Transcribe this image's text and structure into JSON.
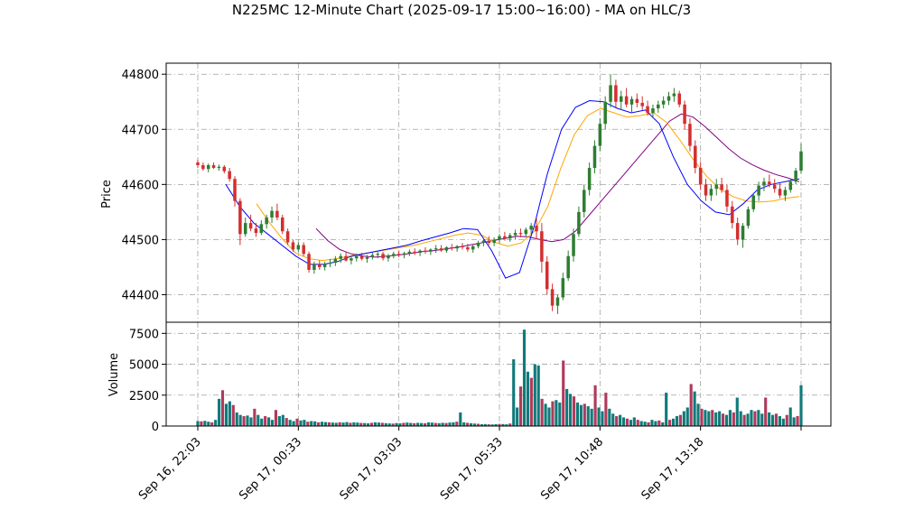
{
  "chart_data": {
    "type": "candlestick",
    "title": "N225MC 12-Minute Chart (2025-09-17 15:00~16:00) - MA on HLC/3",
    "price_panel": {
      "ylabel": "Price",
      "ylim": [
        44350,
        44820
      ],
      "yticks": [
        44400,
        44500,
        44600,
        44700,
        44800
      ],
      "grid": true,
      "candles": [
        [
          44640,
          44645,
          44630,
          44635
        ],
        [
          44635,
          44640,
          44625,
          44628
        ],
        [
          44628,
          44638,
          44622,
          44635
        ],
        [
          44635,
          44640,
          44628,
          44630
        ],
        [
          44630,
          44636,
          44625,
          44632
        ],
        [
          44632,
          44635,
          44620,
          44624
        ],
        [
          44624,
          44630,
          44605,
          44610
        ],
        [
          44610,
          44615,
          44560,
          44570
        ],
        [
          44570,
          44575,
          44490,
          44510
        ],
        [
          44510,
          44540,
          44505,
          44530
        ],
        [
          44530,
          44545,
          44515,
          44520
        ],
        [
          44520,
          44530,
          44505,
          44512
        ],
        [
          44512,
          44535,
          44508,
          44528
        ],
        [
          44528,
          44545,
          44520,
          44540
        ],
        [
          44540,
          44560,
          44530,
          44552
        ],
        [
          44552,
          44565,
          44535,
          44540
        ],
        [
          44540,
          44545,
          44510,
          44515
        ],
        [
          44515,
          44520,
          44490,
          44495
        ],
        [
          44495,
          44500,
          44478,
          44482
        ],
        [
          44482,
          44495,
          44478,
          44490
        ],
        [
          44490,
          44495,
          44470,
          44474
        ],
        [
          44474,
          44478,
          44440,
          44445
        ],
        [
          44445,
          44460,
          44438,
          44455
        ],
        [
          44455,
          44462,
          44445,
          44450
        ],
        [
          44450,
          44460,
          44444,
          44456
        ],
        [
          44456,
          44465,
          44450,
          44458
        ],
        [
          44458,
          44470,
          44452,
          44465
        ],
        [
          44465,
          44475,
          44458,
          44470
        ],
        [
          44470,
          44478,
          44460,
          44462
        ],
        [
          44462,
          44470,
          44455,
          44466
        ],
        [
          44466,
          44475,
          44460,
          44470
        ],
        [
          44470,
          44476,
          44462,
          44465
        ],
        [
          44465,
          44472,
          44458,
          44468
        ],
        [
          44468,
          44476,
          44464,
          44472
        ],
        [
          44472,
          44480,
          44466,
          44474
        ],
        [
          44474,
          44478,
          44462,
          44466
        ],
        [
          44466,
          44474,
          44460,
          44470
        ],
        [
          44470,
          44478,
          44466,
          44474
        ],
        [
          44474,
          44480,
          44468,
          44472
        ],
        [
          44472,
          44478,
          44466,
          44475
        ],
        [
          44475,
          44482,
          44470,
          44478
        ],
        [
          44478,
          44484,
          44472,
          44476
        ],
        [
          44476,
          44482,
          44470,
          44480
        ],
        [
          44480,
          44486,
          44474,
          44478
        ],
        [
          44478,
          44484,
          44472,
          44482
        ],
        [
          44482,
          44490,
          44476,
          44484
        ],
        [
          44484,
          44490,
          44478,
          44480
        ],
        [
          44480,
          44488,
          44476,
          44486
        ],
        [
          44486,
          44492,
          44480,
          44484
        ],
        [
          44484,
          44490,
          44478,
          44488
        ],
        [
          44488,
          44494,
          44482,
          44486
        ],
        [
          44486,
          44492,
          44478,
          44482
        ],
        [
          44482,
          44490,
          44476,
          44488
        ],
        [
          44488,
          44498,
          44484,
          44494
        ],
        [
          44494,
          44502,
          44488,
          44498
        ],
        [
          44498,
          44506,
          44490,
          44494
        ],
        [
          44494,
          44504,
          44488,
          44500
        ],
        [
          44500,
          44510,
          44494,
          44506
        ],
        [
          44506,
          44514,
          44498,
          44502
        ],
        [
          44502,
          44512,
          44496,
          44508
        ],
        [
          44508,
          44518,
          44500,
          44512
        ],
        [
          44512,
          44520,
          44504,
          44510
        ],
        [
          44510,
          44522,
          44505,
          44518
        ],
        [
          44518,
          44530,
          44510,
          44525
        ],
        [
          44525,
          44540,
          44500,
          44515
        ],
        [
          44515,
          44530,
          44440,
          44460
        ],
        [
          44460,
          44470,
          44400,
          44410
        ],
        [
          44410,
          44420,
          44370,
          44380
        ],
        [
          44380,
          44400,
          44365,
          44395
        ],
        [
          44395,
          44440,
          44390,
          44430
        ],
        [
          44430,
          44480,
          44425,
          44470
        ],
        [
          44470,
          44520,
          44460,
          44510
        ],
        [
          44510,
          44560,
          44505,
          44550
        ],
        [
          44550,
          44600,
          44540,
          44590
        ],
        [
          44590,
          44640,
          44580,
          44630
        ],
        [
          44630,
          44680,
          44620,
          44670
        ],
        [
          44670,
          44720,
          44660,
          44710
        ],
        [
          44710,
          44760,
          44700,
          44750
        ],
        [
          44750,
          44800,
          44740,
          44780
        ],
        [
          44780,
          44790,
          44740,
          44750
        ],
        [
          44750,
          44770,
          44735,
          44760
        ],
        [
          44760,
          44775,
          44740,
          44745
        ],
        [
          44745,
          44760,
          44730,
          44755
        ],
        [
          44755,
          44765,
          44740,
          44748
        ],
        [
          44748,
          44760,
          44735,
          44742
        ],
        [
          44742,
          44752,
          44725,
          44730
        ],
        [
          44730,
          44745,
          44720,
          44738
        ],
        [
          44738,
          44752,
          44730,
          44745
        ],
        [
          44745,
          44760,
          44738,
          44752
        ],
        [
          44752,
          44768,
          44744,
          44760
        ],
        [
          44760,
          44775,
          44750,
          44765
        ],
        [
          44765,
          44770,
          44740,
          44745
        ],
        [
          44745,
          44752,
          44700,
          44710
        ],
        [
          44710,
          44720,
          44660,
          44670
        ],
        [
          44670,
          44680,
          44620,
          44630
        ],
        [
          44630,
          44640,
          44590,
          44600
        ],
        [
          44600,
          44610,
          44570,
          44580
        ],
        [
          44580,
          44600,
          44570,
          44592
        ],
        [
          44592,
          44610,
          44580,
          44600
        ],
        [
          44600,
          44612,
          44585,
          44590
        ],
        [
          44590,
          44600,
          44550,
          44560
        ],
        [
          44560,
          44570,
          44520,
          44530
        ],
        [
          44530,
          44540,
          44490,
          44500
        ],
        [
          44500,
          44530,
          44485,
          44525
        ],
        [
          44525,
          44560,
          44520,
          44555
        ],
        [
          44555,
          44585,
          44550,
          44580
        ],
        [
          44580,
          44605,
          44570,
          44598
        ],
        [
          44598,
          44612,
          44588,
          44605
        ],
        [
          44605,
          44618,
          44595,
          44600
        ],
        [
          44600,
          44610,
          44585,
          44592
        ],
        [
          44592,
          44602,
          44575,
          44580
        ],
        [
          44580,
          44596,
          44570,
          44590
        ],
        [
          44590,
          44610,
          44585,
          44605
        ],
        [
          44605,
          44630,
          44600,
          44625
        ],
        [
          44625,
          44675,
          44620,
          44660
        ]
      ],
      "ma_short": [
        44600,
        44560,
        44530,
        44510,
        44490,
        44470,
        44455,
        44455,
        44460,
        44470,
        44475,
        44480,
        44485,
        44490,
        44498,
        44505,
        44512,
        44520,
        44518,
        44480,
        44430,
        44440,
        44520,
        44620,
        44700,
        44740,
        44752,
        44750,
        44738,
        44730,
        44735,
        44710,
        44650,
        44600,
        44570,
        44550,
        44545,
        44565,
        44590,
        44600,
        44605,
        44610
      ],
      "ma_medium": [
        44565,
        44530,
        44500,
        44475,
        44465,
        44462,
        44465,
        44470,
        44474,
        44478,
        44482,
        44486,
        44490,
        44496,
        44502,
        44508,
        44512,
        44508,
        44495,
        44488,
        44494,
        44515,
        44560,
        44630,
        44690,
        44725,
        44738,
        44730,
        44722,
        44725,
        44730,
        44712,
        44680,
        44645,
        44615,
        44592,
        44578,
        44570,
        44568,
        44570,
        44575,
        44578
      ],
      "ma_long": [
        44520,
        44498,
        44482,
        44474,
        44470,
        44468,
        44470,
        44472,
        44475,
        44478,
        44480,
        44483,
        44486,
        44490,
        44494,
        44498,
        44502,
        44506,
        44505,
        44500,
        44496,
        44500,
        44515,
        44540,
        44565,
        44590,
        44615,
        44640,
        44665,
        44690,
        44715,
        44728,
        44722,
        44705,
        44685,
        44665,
        44648,
        44636,
        44626,
        44618,
        44612,
        44605
      ]
    },
    "volume_panel": {
      "ylabel": "Volume",
      "ylim": [
        0,
        8400
      ],
      "yticks": [
        0,
        2500,
        5000,
        7500
      ],
      "grid": true,
      "values": [
        400,
        380,
        420,
        350,
        300,
        500,
        2200,
        2900,
        1800,
        2000,
        1700,
        1100,
        900,
        800,
        850,
        700,
        1400,
        900,
        600,
        800,
        700,
        500,
        1300,
        800,
        900,
        650,
        500,
        400,
        600,
        450,
        500,
        350,
        400,
        380,
        300,
        350,
        320,
        300,
        280,
        260,
        300,
        280,
        320,
        260,
        300,
        280,
        250,
        240,
        220,
        260,
        300,
        280,
        260,
        230,
        210,
        200,
        240,
        220,
        260,
        280,
        250,
        230,
        260,
        240,
        220,
        300,
        280,
        250,
        230,
        260,
        240,
        280,
        300,
        350,
        1100,
        300,
        260,
        220,
        200,
        180,
        150,
        160,
        140,
        130,
        150,
        170,
        160,
        140,
        200,
        5400,
        1500,
        3200,
        7800,
        4400,
        3900,
        5000,
        4900,
        2200,
        1800,
        1500,
        2000,
        2100,
        1900,
        5300,
        3000,
        2600,
        2400,
        1900,
        1700,
        1800,
        1600,
        1400,
        3300,
        1500,
        1200,
        2700,
        1400,
        1000,
        800,
        900,
        700,
        600,
        500,
        700,
        500,
        400,
        350,
        300,
        500,
        400,
        450,
        300,
        2700,
        500,
        600,
        800,
        900,
        1200,
        1500,
        3400,
        2800,
        1800,
        1400,
        1300,
        1200,
        1300,
        1100,
        1200,
        1000,
        900,
        1300,
        1100,
        2300,
        1200,
        900,
        1000,
        1300,
        1200,
        1300,
        1000,
        2300,
        1100,
        900,
        1000,
        800,
        600,
        900,
        1500,
        700,
        800,
        3300
      ]
    },
    "x_tick_labels": [
      "Sep 16, 22:03",
      "Sep 17, 00:33",
      "Sep 17, 03:03",
      "Sep 17, 05:33",
      "Sep 17, 10:48",
      "Sep 17, 13:18"
    ],
    "colors": {
      "up": "#2e7d32",
      "down": "#d32f2f",
      "vol_up": "#117a7a",
      "vol_down": "#b03a5b",
      "ma_short": "#0000ff",
      "ma_medium": "#ffa500",
      "ma_long": "#800080",
      "grid": "#a0a0a0"
    }
  }
}
